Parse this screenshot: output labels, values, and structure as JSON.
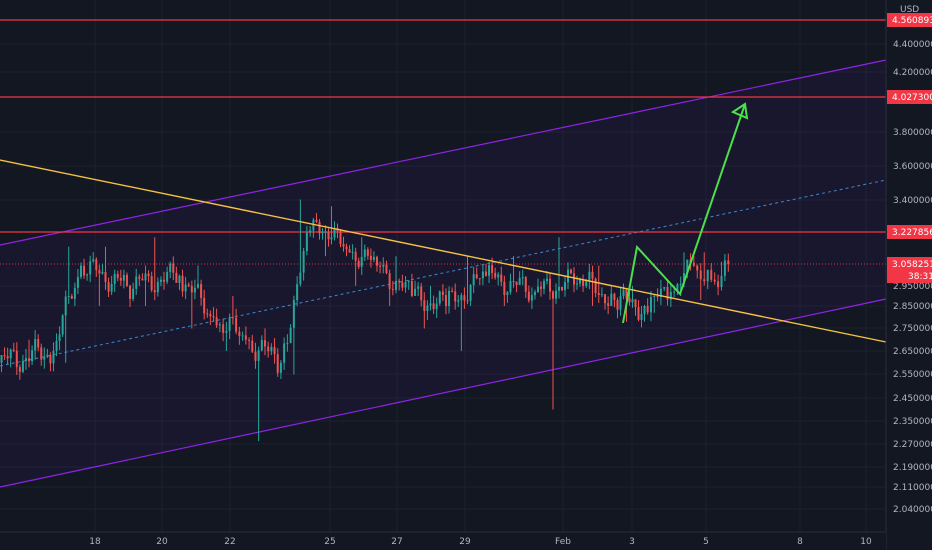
{
  "chart_data": {
    "type": "candlestick",
    "currency": "USD",
    "y_axis_ticks": [
      "4.4000000",
      "4.2000000",
      "3.8000000",
      "3.6000000",
      "3.4000000",
      "2.9500000",
      "2.8500000",
      "2.7500000",
      "2.6500000",
      "2.5500000",
      "2.4500000",
      "2.3500000",
      "2.2700000",
      "2.1900000",
      "2.1100000",
      "2.0400000"
    ],
    "x_axis_ticks": [
      "18",
      "20",
      "22",
      "25",
      "27",
      "29",
      "Feb",
      "3",
      "5",
      "8",
      "10"
    ],
    "price_tags": [
      {
        "label": "4.5608934",
        "color": "#f23645"
      },
      {
        "label": "4.0273000",
        "color": "#f23645"
      },
      {
        "label": "3.2278560",
        "color": "#f23645"
      },
      {
        "label": "3.0582518",
        "color": "#f23645"
      },
      {
        "label": "38:31",
        "color": "#f23645"
      }
    ],
    "horizontal_levels": [
      4.5608934,
      4.0273,
      3.227856
    ],
    "last_price": 3.0582518,
    "countdown": "38:31",
    "colors": {
      "background": "#131722",
      "up": "#26a69a",
      "down": "#ef5350",
      "resistance": "#f23645",
      "channel": "#8e24e8",
      "trendline": "#f5c242",
      "projection": "#4be04b",
      "midline": "#42a5f5"
    },
    "annotations": {
      "ascending_channel": true,
      "descending_trendline": true,
      "projection_arrow": true
    },
    "candles": [
      {
        "d": "Jan 16",
        "o": 2.6,
        "h": 2.7,
        "l": 2.55,
        "c": 2.65
      },
      {
        "d": "Jan 17",
        "o": 2.65,
        "h": 3.15,
        "l": 2.6,
        "c": 3.05
      },
      {
        "d": "Jan 18",
        "o": 3.05,
        "h": 3.15,
        "l": 2.85,
        "c": 2.95
      },
      {
        "d": "Jan 19",
        "o": 2.95,
        "h": 3.2,
        "l": 2.85,
        "c": 3.0
      },
      {
        "d": "Jan 20",
        "o": 3.0,
        "h": 3.05,
        "l": 2.75,
        "c": 2.8
      },
      {
        "d": "Jan 21",
        "o": 2.8,
        "h": 2.9,
        "l": 2.65,
        "c": 2.7
      },
      {
        "d": "Jan 22",
        "o": 2.7,
        "h": 2.75,
        "l": 2.28,
        "c": 2.6
      },
      {
        "d": "Jan 23",
        "o": 2.6,
        "h": 3.42,
        "l": 2.55,
        "c": 3.3
      },
      {
        "d": "Jan 24",
        "o": 3.3,
        "h": 3.38,
        "l": 3.1,
        "c": 3.15
      },
      {
        "d": "Jan 25",
        "o": 3.15,
        "h": 3.2,
        "l": 2.95,
        "c": 3.05
      },
      {
        "d": "Jan 26",
        "o": 3.05,
        "h": 3.1,
        "l": 2.85,
        "c": 2.9
      },
      {
        "d": "Jan 27",
        "o": 2.9,
        "h": 2.95,
        "l": 2.75,
        "c": 2.85
      },
      {
        "d": "Jan 28",
        "o": 2.85,
        "h": 3.1,
        "l": 2.65,
        "c": 3.0
      },
      {
        "d": "Jan 29",
        "o": 3.0,
        "h": 3.1,
        "l": 2.85,
        "c": 2.92
      },
      {
        "d": "Jan 30",
        "o": 2.92,
        "h": 3.2,
        "l": 2.4,
        "c": 2.98
      },
      {
        "d": "Jan 31",
        "o": 2.98,
        "h": 3.05,
        "l": 2.85,
        "c": 2.88
      },
      {
        "d": "Feb 1",
        "o": 2.88,
        "h": 2.95,
        "l": 2.78,
        "c": 2.85
      },
      {
        "d": "Feb 2",
        "o": 2.85,
        "h": 2.98,
        "l": 2.82,
        "c": 2.92
      },
      {
        "d": "Feb 3",
        "o": 2.92,
        "h": 3.12,
        "l": 2.9,
        "c": 3.05
      },
      {
        "d": "Feb 4",
        "o": 3.05,
        "h": 3.12,
        "l": 2.88,
        "c": 2.98
      },
      {
        "d": "Feb 5",
        "o": 2.98,
        "h": 3.07,
        "l": 2.95,
        "c": 3.0582518
      }
    ]
  }
}
